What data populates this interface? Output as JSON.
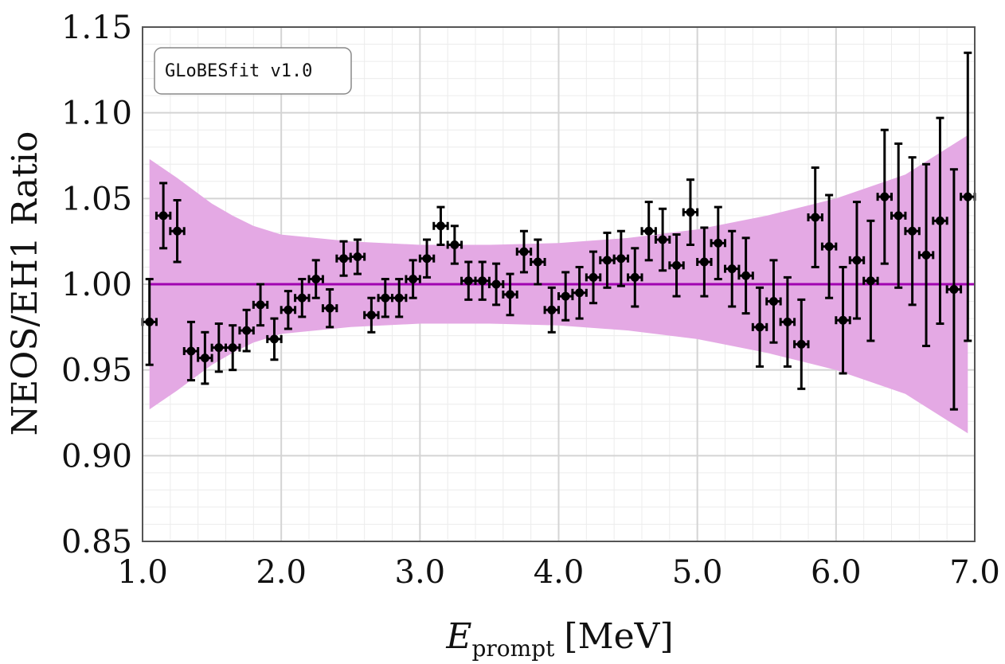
{
  "chart_data": {
    "type": "scatter",
    "xlabel_main": "E",
    "xlabel_sub": "prompt",
    "xlabel_unit": "[MeV]",
    "ylabel": "NEOS/EH1 Ratio",
    "xlim": [
      1.0,
      7.0
    ],
    "ylim": [
      0.85,
      1.15
    ],
    "x_ticks": [
      1.0,
      2.0,
      3.0,
      4.0,
      5.0,
      6.0,
      7.0
    ],
    "x_tick_labels": [
      "1.0",
      "2.0",
      "3.0",
      "4.0",
      "5.0",
      "6.0",
      "7.0"
    ],
    "y_ticks": [
      0.85,
      0.9,
      0.95,
      1.0,
      1.05,
      1.1,
      1.15
    ],
    "y_tick_labels": [
      "0.85",
      "0.90",
      "0.95",
      "1.00",
      "1.05",
      "1.10",
      "1.15"
    ],
    "grid": true,
    "legend_text": "GLoBESfit v1.0",
    "legend_position": "top-left",
    "reference_line": 1.0,
    "colors": {
      "band": "#e4a9e4",
      "reference_line": "#a000b0",
      "points": "#000000",
      "grid_major": "#d4d4d4",
      "grid_minor": "#ececec"
    },
    "x_half_width": 0.05,
    "band": {
      "x": [
        1.05,
        1.25,
        1.5,
        1.65,
        1.8,
        2.0,
        2.5,
        3.0,
        3.5,
        4.0,
        4.5,
        5.0,
        5.5,
        6.0,
        6.5,
        6.95
      ],
      "upper": [
        1.073,
        1.062,
        1.047,
        1.04,
        1.034,
        1.029,
        1.025,
        1.023,
        1.023,
        1.024,
        1.027,
        1.032,
        1.04,
        1.05,
        1.064,
        1.087
      ],
      "lower": [
        0.927,
        0.938,
        0.953,
        0.96,
        0.966,
        0.971,
        0.975,
        0.977,
        0.977,
        0.976,
        0.973,
        0.968,
        0.96,
        0.95,
        0.936,
        0.913
      ]
    },
    "series": [
      {
        "x": [
          1.05,
          1.15,
          1.25,
          1.35,
          1.45,
          1.55,
          1.65,
          1.75,
          1.85,
          1.95,
          2.05,
          2.15,
          2.25,
          2.35,
          2.45,
          2.55,
          2.65,
          2.75,
          2.85,
          2.95,
          3.05,
          3.15,
          3.25,
          3.35,
          3.45,
          3.55,
          3.65,
          3.75,
          3.85,
          3.95,
          4.05,
          4.15,
          4.25,
          4.35,
          4.45,
          4.55,
          4.65,
          4.75,
          4.85,
          4.95,
          5.05,
          5.15,
          5.25,
          5.35,
          5.45,
          5.55,
          5.65,
          5.75,
          5.85,
          5.95,
          6.05,
          6.15,
          6.25,
          6.35,
          6.45,
          6.55,
          6.65,
          6.75,
          6.85,
          6.95
        ],
        "y": [
          0.978,
          1.04,
          1.031,
          0.961,
          0.957,
          0.963,
          0.963,
          0.973,
          0.988,
          0.968,
          0.985,
          0.992,
          1.003,
          0.986,
          1.015,
          1.016,
          0.982,
          0.992,
          0.992,
          1.003,
          1.015,
          1.034,
          1.023,
          1.002,
          1.002,
          1.0,
          0.994,
          1.019,
          1.013,
          0.985,
          0.993,
          0.995,
          1.004,
          1.014,
          1.015,
          1.004,
          1.031,
          1.026,
          1.011,
          1.042,
          1.013,
          1.024,
          1.009,
          1.005,
          0.975,
          0.99,
          0.978,
          0.965,
          1.039,
          1.022,
          0.979,
          1.014,
          1.002,
          1.051,
          1.04,
          1.031,
          1.017,
          1.037,
          0.997,
          1.051
        ],
        "err": [
          0.025,
          0.019,
          0.018,
          0.017,
          0.015,
          0.014,
          0.013,
          0.012,
          0.012,
          0.012,
          0.011,
          0.011,
          0.011,
          0.011,
          0.01,
          0.01,
          0.01,
          0.011,
          0.011,
          0.011,
          0.011,
          0.011,
          0.011,
          0.011,
          0.011,
          0.012,
          0.012,
          0.012,
          0.013,
          0.013,
          0.014,
          0.015,
          0.015,
          0.016,
          0.016,
          0.017,
          0.017,
          0.018,
          0.018,
          0.019,
          0.02,
          0.021,
          0.022,
          0.022,
          0.023,
          0.024,
          0.026,
          0.026,
          0.029,
          0.03,
          0.031,
          0.034,
          0.035,
          0.039,
          0.042,
          0.043,
          0.053,
          0.06,
          0.07,
          0.084
        ]
      }
    ]
  }
}
